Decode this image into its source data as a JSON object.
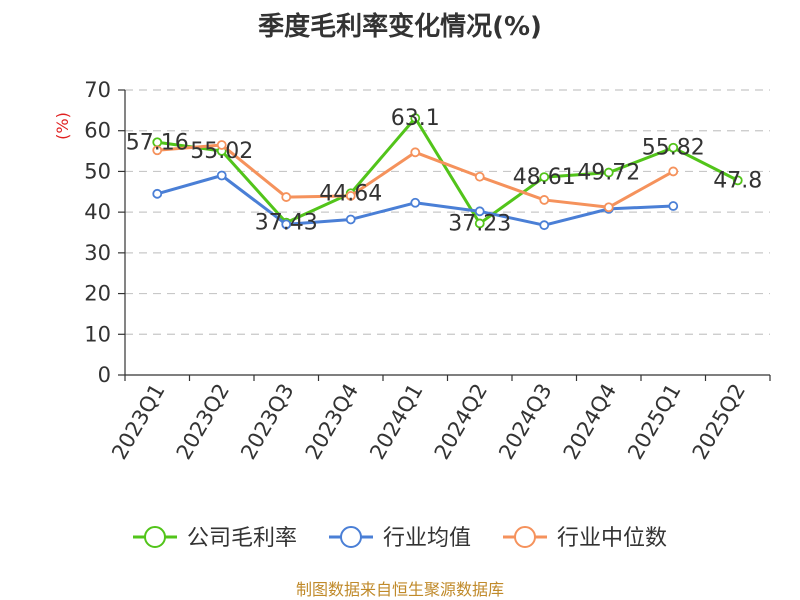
{
  "chart_data": {
    "type": "line",
    "title": "季度毛利率变化情况(%)",
    "xlabel": "",
    "ylabel": "(%)",
    "ylim": [
      0,
      70
    ],
    "yticks": [
      0,
      10,
      20,
      30,
      40,
      50,
      60,
      70
    ],
    "grid": true,
    "legend_position": "bottom",
    "categories": [
      "2023Q1",
      "2023Q2",
      "2023Q3",
      "2023Q4",
      "2024Q1",
      "2024Q2",
      "2024Q3",
      "2024Q4",
      "2025Q1",
      "2025Q2"
    ],
    "series": [
      {
        "name": "公司毛利率",
        "color": "#52c41a",
        "values": [
          57.16,
          55.02,
          37.43,
          44.64,
          63.1,
          37.23,
          48.61,
          49.72,
          55.82,
          47.8
        ],
        "labels": [
          "57.16",
          "55.02",
          "37.43",
          "44.64",
          "63.1",
          "37.23",
          "48.61",
          "49.72",
          "55.82",
          "47.8"
        ]
      },
      {
        "name": "行业均值",
        "color": "#4a7fd6",
        "values": [
          44.5,
          49.0,
          37.0,
          38.2,
          42.3,
          40.2,
          36.8,
          40.8,
          41.5,
          null
        ]
      },
      {
        "name": "行业中位数",
        "color": "#f5925c",
        "values": [
          55.2,
          56.5,
          43.7,
          44.0,
          54.7,
          48.7,
          43.0,
          41.2,
          50.0,
          null
        ]
      }
    ]
  },
  "source": "制图数据来自恒生聚源数据库"
}
